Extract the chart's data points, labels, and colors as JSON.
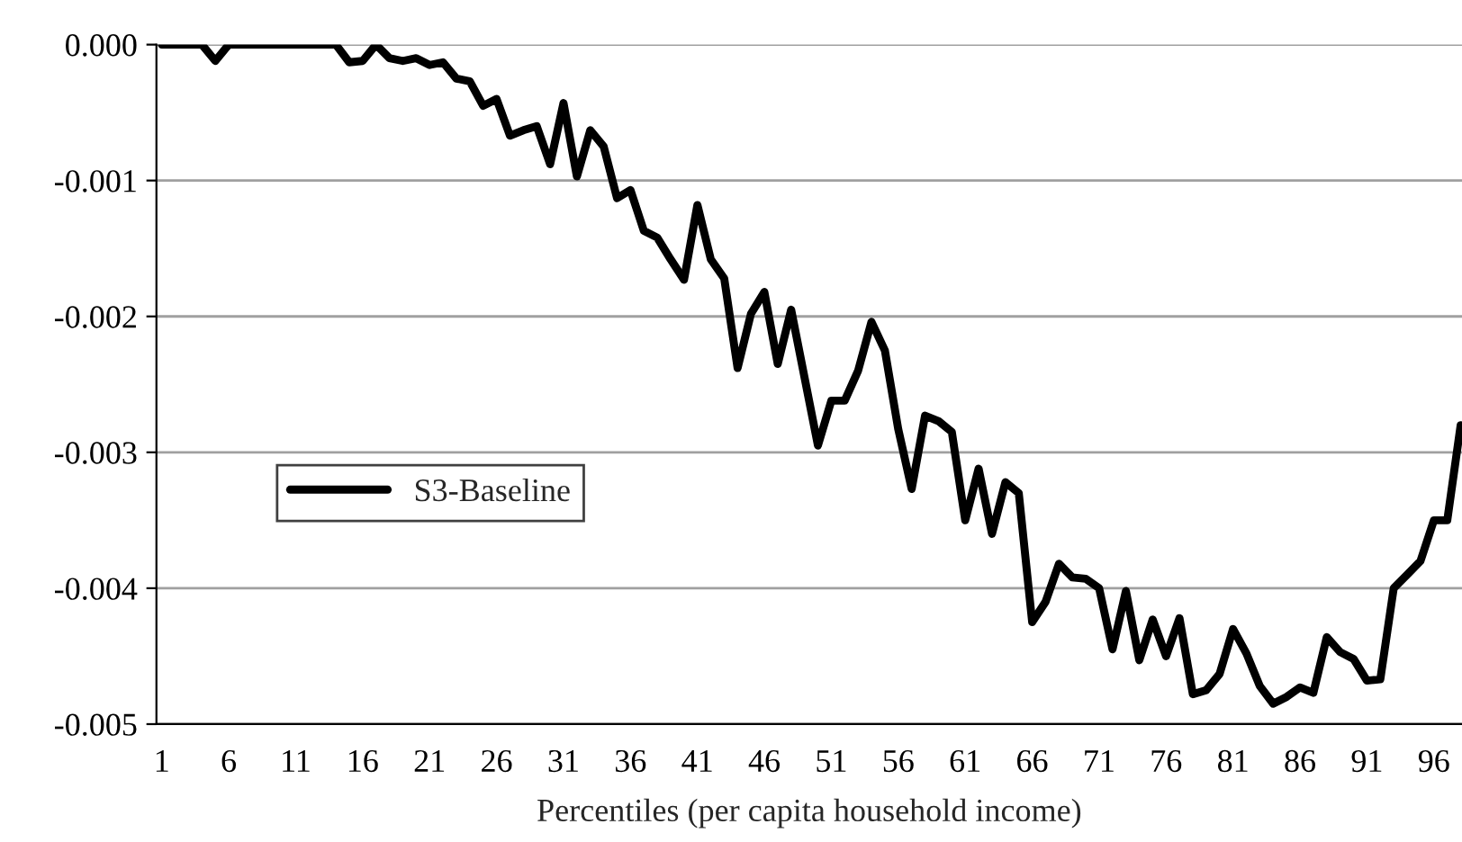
{
  "chart_data": {
    "type": "line",
    "xlabel": "Percentiles (per capita household income)",
    "categories": [
      "1",
      null,
      null,
      null,
      null,
      "6",
      null,
      null,
      null,
      null,
      "11",
      null,
      null,
      null,
      null,
      "16",
      null,
      null,
      null,
      null,
      "21",
      null,
      null,
      null,
      null,
      "26",
      null,
      null,
      null,
      null,
      "31",
      null,
      null,
      null,
      null,
      "36",
      null,
      null,
      null,
      null,
      "41",
      null,
      null,
      null,
      null,
      "46",
      null,
      null,
      null,
      null,
      "51",
      null,
      null,
      null,
      null,
      "56",
      null,
      null,
      null,
      null,
      "61",
      null,
      null,
      null,
      null,
      "66",
      null,
      null,
      null,
      null,
      "71",
      null,
      null,
      null,
      null,
      "76",
      null,
      null,
      null,
      null,
      "81",
      null,
      null,
      null,
      null,
      "86",
      null,
      null,
      null,
      null,
      "91",
      null,
      null,
      null,
      null,
      "96",
      null,
      null
    ],
    "series": [
      {
        "name": "S3-Baseline",
        "color": "#000000",
        "values": [
          0,
          0,
          0,
          0,
          -0.00012,
          0,
          0,
          0,
          0,
          0,
          0,
          0,
          0,
          0,
          -0.00013,
          -0.00012,
          0,
          -0.0001,
          -0.00012,
          -0.0001,
          -0.00015,
          -0.00013,
          -0.00025,
          -0.00027,
          -0.00045,
          -0.0004,
          -0.00067,
          -0.00063,
          -0.0006,
          -0.00088,
          -0.00043,
          -0.00097,
          -0.00063,
          -0.00075,
          -0.00113,
          -0.00107,
          -0.00137,
          -0.00142,
          -0.00158,
          -0.00173,
          -0.00118,
          -0.00158,
          -0.00172,
          -0.00238,
          -0.00198,
          -0.00182,
          -0.00235,
          -0.00195,
          -0.00245,
          -0.00295,
          -0.00262,
          -0.00262,
          -0.0024,
          -0.00204,
          -0.00225,
          -0.00283,
          -0.00327,
          -0.00273,
          -0.00277,
          -0.00285,
          -0.0035,
          -0.00312,
          -0.0036,
          -0.00322,
          -0.0033,
          -0.00425,
          -0.0041,
          -0.00382,
          -0.00392,
          -0.00393,
          -0.004,
          -0.00445,
          -0.00402,
          -0.00453,
          -0.00423,
          -0.0045,
          -0.00422,
          -0.00478,
          -0.00475,
          -0.00463,
          -0.0043,
          -0.00448,
          -0.00472,
          -0.00485,
          -0.0048,
          -0.00473,
          -0.00477,
          -0.00436,
          -0.00447,
          -0.00452,
          -0.00468,
          -0.00467,
          -0.004,
          -0.0039,
          -0.0038,
          -0.0035,
          -0.0035,
          -0.0028
        ]
      }
    ],
    "ylim": [
      -0.005,
      0
    ],
    "yticks": [
      {
        "value": -0.005,
        "label": "-0.005"
      },
      {
        "value": -0.004,
        "label": "-0.004"
      },
      {
        "value": -0.003,
        "label": "-0.003"
      },
      {
        "value": -0.002,
        "label": "-0.002"
      },
      {
        "value": -0.001,
        "label": "-0.001"
      },
      {
        "value": 0,
        "label": "0.000"
      }
    ],
    "grid": "y",
    "legend": "center left",
    "marker": "none",
    "line_style": "solid"
  }
}
